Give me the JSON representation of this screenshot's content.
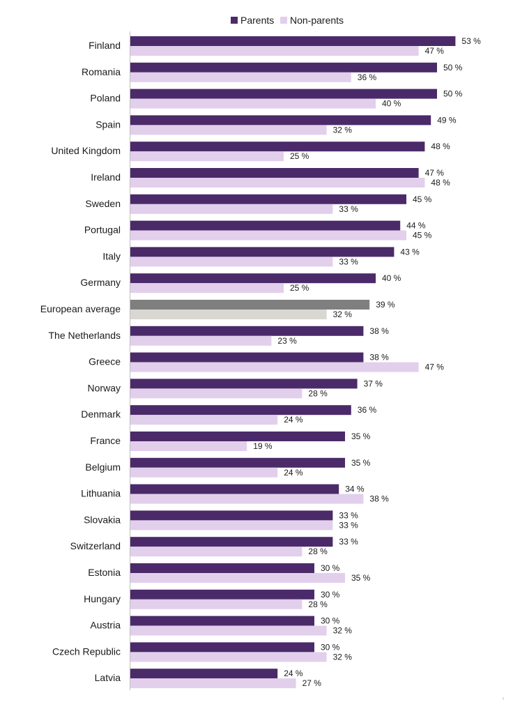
{
  "chart_data": {
    "type": "bar",
    "orientation": "horizontal",
    "title": "",
    "xlabel": "",
    "ylabel": "",
    "value_suffix": " %",
    "xlim": [
      0,
      60
    ],
    "grid": false,
    "legend_position": "top-center",
    "categories": [
      "Finland",
      "Romania",
      "Poland",
      "Spain",
      "United Kingdom",
      "Ireland",
      "Sweden",
      "Portugal",
      "Italy",
      "Germany",
      "European average",
      "The Netherlands",
      "Greece",
      "Norway",
      "Denmark",
      "France",
      "Belgium",
      "Lithuania",
      "Slovakia",
      "Switzerland",
      "Estonia",
      "Hungary",
      "Austria",
      "Czech Republic",
      "Latvia"
    ],
    "highlight_category": "European average",
    "series": [
      {
        "name": "Parents",
        "color": "#4b2a69",
        "highlight_color": "#7f7f7f",
        "values": [
          53,
          50,
          50,
          49,
          48,
          47,
          45,
          44,
          43,
          40,
          39,
          38,
          38,
          37,
          36,
          35,
          35,
          34,
          33,
          33,
          30,
          30,
          30,
          30,
          24
        ]
      },
      {
        "name": "Non-parents",
        "color": "#e2cfec",
        "highlight_color": "#d9d7d2",
        "values": [
          47,
          36,
          40,
          32,
          25,
          48,
          33,
          45,
          33,
          25,
          32,
          23,
          47,
          28,
          24,
          19,
          24,
          38,
          33,
          28,
          35,
          28,
          32,
          32,
          27
        ]
      }
    ]
  }
}
